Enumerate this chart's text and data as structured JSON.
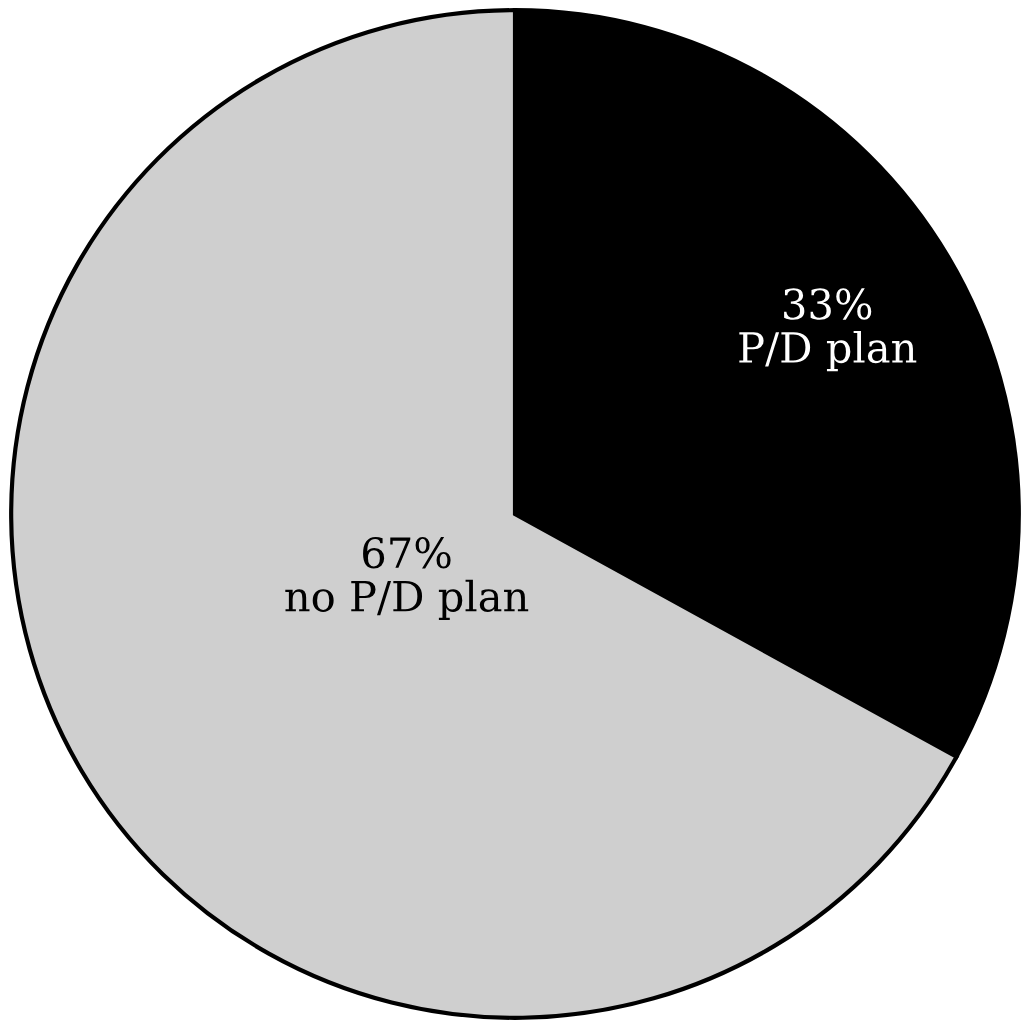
{
  "chart_data": {
    "type": "pie",
    "categories": [
      "P/D plan",
      "no P/D plan"
    ],
    "values": [
      33,
      67
    ],
    "value_labels": [
      "33%",
      "67%"
    ],
    "colors": [
      "#000000",
      "#cfcfcf"
    ]
  }
}
